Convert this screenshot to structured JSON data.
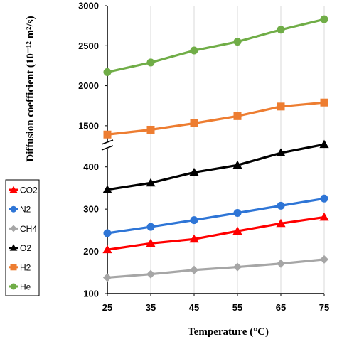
{
  "chart_data": {
    "type": "line",
    "x": [
      25,
      35,
      45,
      55,
      65,
      75
    ],
    "xlabel": "Temperature (°C)",
    "ylabel": "Diffusion coefficient (10⁻¹² m²/s)",
    "xlim": [
      25,
      75
    ],
    "broken_y_axis": {
      "lower": {
        "range": [
          100,
          450
        ],
        "ticks": [
          100,
          200,
          300,
          400
        ]
      },
      "upper": {
        "range": [
          1250,
          3000
        ],
        "ticks": [
          1500,
          2000,
          2500,
          3000
        ]
      }
    },
    "x_ticks": [
      "25",
      "35",
      "45",
      "55",
      "65",
      "75"
    ],
    "y_ticks": [
      "100",
      "200",
      "300",
      "400",
      "1500",
      "2000",
      "2500",
      "3000"
    ],
    "grid": "vertical",
    "legend_position": "left",
    "series": [
      {
        "name": "CO2",
        "color": "#ff0000",
        "marker": "triangle",
        "values": [
          204,
          219,
          229,
          248,
          266,
          281
        ]
      },
      {
        "name": "N2",
        "color": "#2e75d6",
        "marker": "circle",
        "values": [
          243,
          258,
          274,
          291,
          308,
          325
        ]
      },
      {
        "name": "CH4",
        "color": "#a6a6a6",
        "marker": "diamond",
        "values": [
          138,
          146,
          156,
          163,
          171,
          181
        ]
      },
      {
        "name": "O2",
        "color": "#000000",
        "marker": "triangle",
        "values": [
          346,
          362,
          387,
          404,
          433,
          453
        ]
      },
      {
        "name": "H2",
        "color": "#ed7d31",
        "marker": "square",
        "values": [
          1390,
          1450,
          1530,
          1620,
          1740,
          1790
        ]
      },
      {
        "name": "He",
        "color": "#70ad47",
        "marker": "circle",
        "values": [
          2170,
          2290,
          2440,
          2550,
          2700,
          2830
        ]
      }
    ]
  }
}
